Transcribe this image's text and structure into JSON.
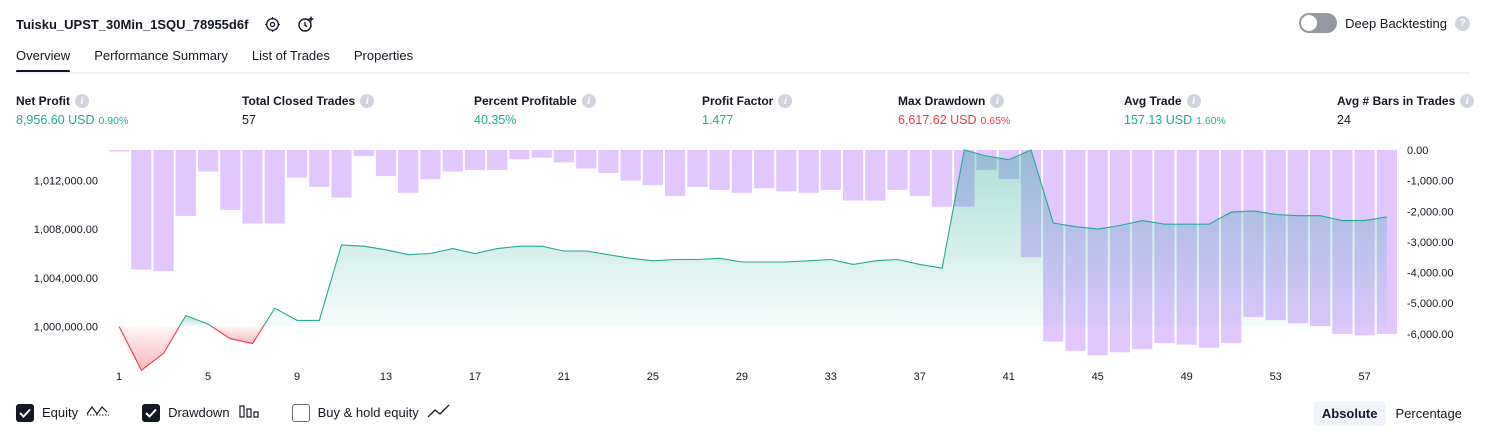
{
  "header": {
    "strategy_name": "Tuisku_UPST_30Min_1SQU_78955d6f",
    "settings_icon": "gear-icon",
    "alert_icon": "add-alert-icon"
  },
  "deep_backtesting": {
    "label": "Deep Backtesting",
    "enabled": false
  },
  "tabs": [
    {
      "label": "Overview",
      "active": true
    },
    {
      "label": "Performance Summary",
      "active": false
    },
    {
      "label": "List of Trades",
      "active": false
    },
    {
      "label": "Properties",
      "active": false
    }
  ],
  "metrics": [
    {
      "label": "Net Profit",
      "value": "8,956.60 USD",
      "pct": "0.90%",
      "tone": "green"
    },
    {
      "label": "Total Closed Trades",
      "value": "57",
      "pct": "",
      "tone": "dark"
    },
    {
      "label": "Percent Profitable",
      "value": "40.35%",
      "pct": "",
      "tone": "green"
    },
    {
      "label": "Profit Factor",
      "value": "1.477",
      "pct": "",
      "tone": "green"
    },
    {
      "label": "Max Drawdown",
      "value": "6,617.62 USD",
      "pct": "0.65%",
      "tone": "red"
    },
    {
      "label": "Avg Trade",
      "value": "157.13 USD",
      "pct": "1.60%",
      "tone": "green"
    },
    {
      "label": "Avg # Bars in Trades",
      "value": "24",
      "pct": "",
      "tone": "dark"
    }
  ],
  "legend": {
    "equity": {
      "label": "Equity",
      "checked": true
    },
    "drawdown": {
      "label": "Drawdown",
      "checked": true
    },
    "buy_hold": {
      "label": "Buy & hold equity",
      "checked": false
    }
  },
  "modes": {
    "absolute": "Absolute",
    "percentage": "Percentage",
    "selected": "Absolute"
  },
  "colors": {
    "profit": "#22ab94",
    "loss": "#f23645",
    "drawdown_bar": "#e1c6ff",
    "equity_line": "#22ab94"
  },
  "chart_data": {
    "type": "area",
    "x_ticks": [
      "1",
      "5",
      "9",
      "13",
      "17",
      "21",
      "25",
      "29",
      "33",
      "37",
      "41",
      "45",
      "49",
      "53",
      "57"
    ],
    "y_left_ticks": [
      "1,012,000.00",
      "1,008,000.00",
      "1,004,000.00",
      "1,000,000.00"
    ],
    "y_right_ticks": [
      "0.00",
      "-1,000.00",
      "-2,000.00",
      "-3,000.00",
      "-4,000.00",
      "-5,000.00",
      "-6,000.00"
    ],
    "y_left_range": [
      997000,
      1014500
    ],
    "y_right_range": [
      -6950,
      0
    ],
    "baseline": 1000000,
    "series": [
      {
        "name": "Equity",
        "x": [
          1,
          2,
          3,
          4,
          5,
          6,
          7,
          8,
          9,
          10,
          11,
          12,
          13,
          14,
          15,
          16,
          17,
          18,
          19,
          20,
          21,
          22,
          23,
          24,
          25,
          26,
          27,
          28,
          29,
          30,
          31,
          32,
          33,
          34,
          35,
          36,
          37,
          38,
          39,
          40,
          41,
          42,
          43,
          44,
          45,
          46,
          47,
          48,
          49,
          50,
          51,
          52,
          53,
          54,
          55,
          56,
          57,
          58
        ],
        "values": [
          1000000,
          996400,
          997800,
          1000900,
          1000200,
          999000,
          998600,
          1001500,
          1000500,
          1000500,
          1006700,
          1006600,
          1006300,
          1005900,
          1006000,
          1006400,
          1006000,
          1006400,
          1006600,
          1006600,
          1006200,
          1006200,
          1005900,
          1005600,
          1005400,
          1005500,
          1005500,
          1005600,
          1005300,
          1005300,
          1005300,
          1005400,
          1005500,
          1005100,
          1005400,
          1005500,
          1005100,
          1004800,
          1014500,
          1014000,
          1013700,
          1014500,
          1008500,
          1008200,
          1008000,
          1008300,
          1008700,
          1008400,
          1008400,
          1008400,
          1009400,
          1009500,
          1009200,
          1009100,
          1009100,
          1008700,
          1008700,
          1009000
        ]
      },
      {
        "name": "Drawdown",
        "x": [
          1,
          2,
          3,
          4,
          5,
          6,
          7,
          8,
          9,
          10,
          11,
          12,
          13,
          14,
          15,
          16,
          17,
          18,
          19,
          20,
          21,
          22,
          23,
          24,
          25,
          26,
          27,
          28,
          29,
          30,
          31,
          32,
          33,
          34,
          35,
          36,
          37,
          38,
          39,
          40,
          41,
          42,
          43,
          44,
          45,
          46,
          47,
          48,
          49,
          50,
          51,
          52,
          53,
          54,
          55,
          56,
          57,
          58
        ],
        "values": [
          -50,
          -3900,
          -3950,
          -2150,
          -700,
          -1950,
          -2400,
          -2400,
          -900,
          -1200,
          -1550,
          -200,
          -850,
          -1400,
          -950,
          -700,
          -650,
          -650,
          -300,
          -250,
          -400,
          -600,
          -750,
          -1000,
          -1150,
          -1500,
          -1200,
          -1300,
          -1400,
          -1250,
          -1350,
          -1400,
          -1300,
          -1650,
          -1650,
          -1300,
          -1500,
          -1850,
          -1850,
          -650,
          -950,
          -3500,
          -6250,
          -6550,
          -6700,
          -6600,
          -6500,
          -6300,
          -6350,
          -6450,
          -6300,
          -5450,
          -5550,
          -5650,
          -5750,
          -6000,
          -6050,
          -6000
        ]
      }
    ],
    "xlabel": "",
    "ylabel": "",
    "legend": [
      "Equity",
      "Drawdown",
      "Buy & hold equity"
    ]
  }
}
